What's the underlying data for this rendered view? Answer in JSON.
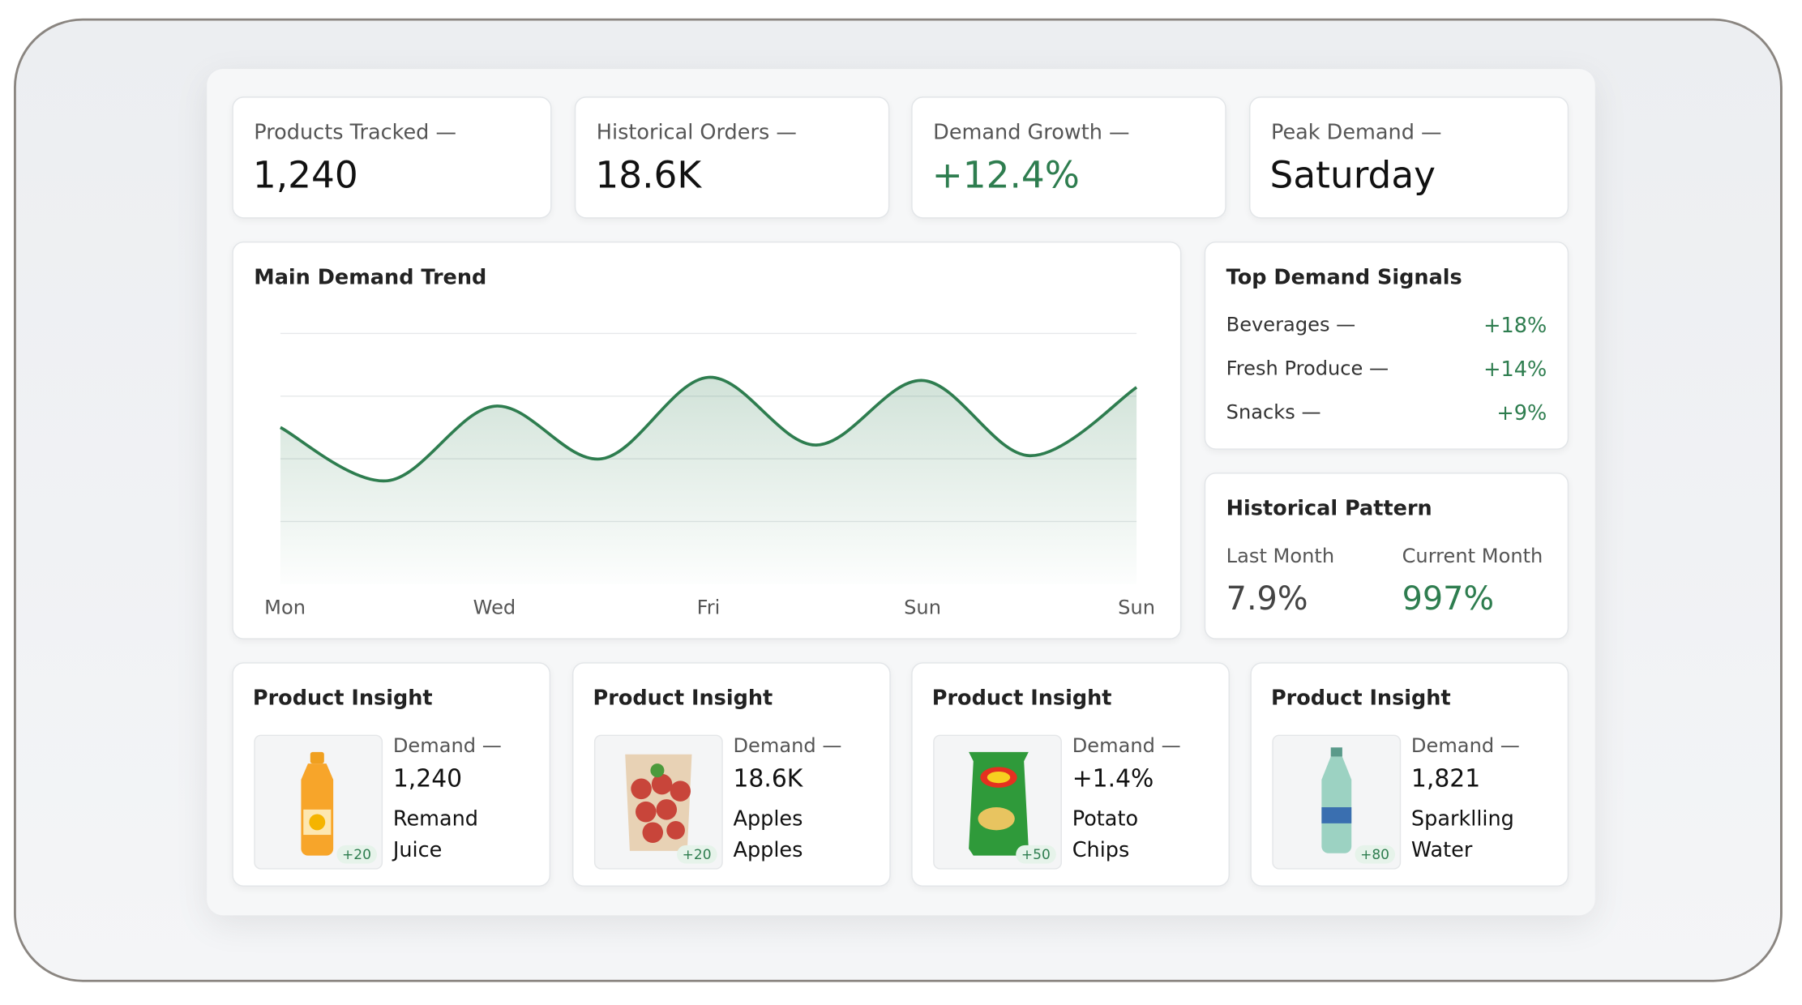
{
  "kpis": [
    {
      "label": "Products Tracked —",
      "value": "1,240"
    },
    {
      "label": "Historical Orders —",
      "value": "18.6K"
    },
    {
      "label": "Demand Growth —",
      "value": "+12.4%"
    },
    {
      "label": "Peak Demand —",
      "value": "Saturday"
    }
  ],
  "chart_data": {
    "type": "line",
    "title": "Main Demand Trend",
    "categories": [
      "Mon",
      null,
      "Wed",
      null,
      "Fri",
      null,
      "Sun",
      null,
      "Sun"
    ],
    "series": [
      {
        "name": "Demand",
        "color": "#2e7d4f",
        "values": [
          2.5,
          1.65,
          2.84,
          2.0,
          3.3,
          2.22,
          3.25,
          2.05,
          3.14
        ]
      }
    ],
    "ylim": [
      0,
      4
    ],
    "yticks": [
      1,
      2,
      3,
      4
    ],
    "grid": true
  },
  "signals": {
    "title": "Top Demand Signals",
    "items": [
      {
        "name": "Beverages —",
        "value": "+18%"
      },
      {
        "name": "Fresh Produce —",
        "value": "+14%"
      },
      {
        "name": "Snacks —",
        "value": "+9%"
      }
    ]
  },
  "historical": {
    "title": "Historical Pattern",
    "columns": [
      {
        "label": "Last Month",
        "value": "7.9%"
      },
      {
        "label": "Current Month",
        "value": "997%"
      }
    ]
  },
  "products": [
    {
      "title": "Product Insight",
      "label": "Demand —",
      "value": "1,240",
      "name": [
        "Remand",
        "Juice"
      ],
      "badge": "+20"
    },
    {
      "title": "Product Insight",
      "label": "Demand —",
      "value": "18.6K",
      "name": [
        "Apples",
        "Apples"
      ],
      "badge": "+20"
    },
    {
      "title": "Product Insight",
      "label": "Demand —",
      "value": "+1.4%",
      "name": [
        "Potato",
        "Chips"
      ],
      "badge": "+50"
    },
    {
      "title": "Product Insight",
      "label": "Demand —",
      "value": "1,821",
      "name": [
        "Sparklling",
        "Water"
      ],
      "badge": "+80"
    }
  ]
}
